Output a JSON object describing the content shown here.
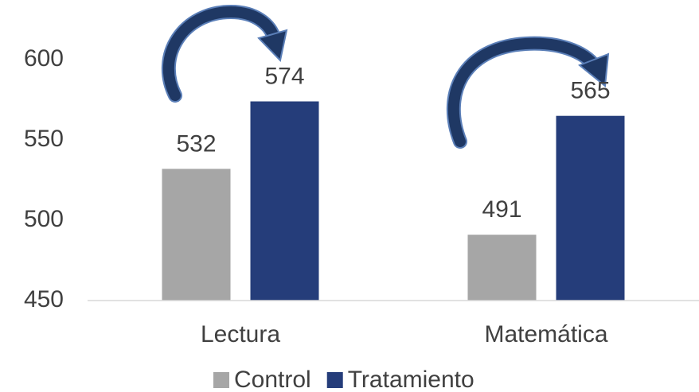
{
  "chart_data": {
    "type": "bar",
    "categories": [
      "Lectura",
      "Matemática"
    ],
    "series": [
      {
        "name": "Control",
        "color": "#a6a6a6",
        "values": [
          532,
          491
        ]
      },
      {
        "name": "Tratamiento",
        "color": "#253d7a",
        "values": [
          574,
          565
        ]
      }
    ],
    "ylim": [
      450,
      600
    ],
    "yticks": [
      450,
      500,
      550,
      600
    ],
    "grid": false,
    "legend": "bottom"
  }
}
